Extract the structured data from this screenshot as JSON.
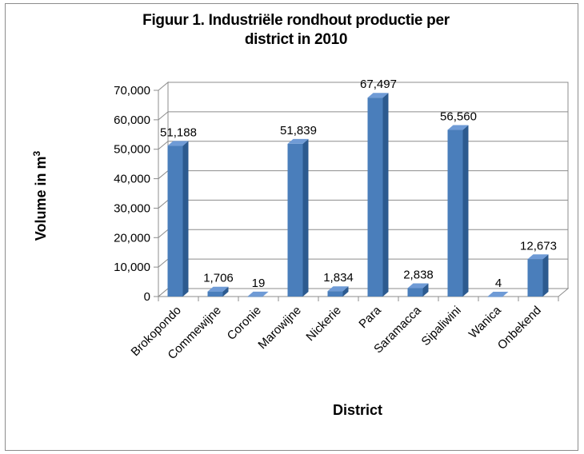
{
  "chart_data": {
    "type": "bar",
    "title_line1": "Figuur 1. Industriële rondhout productie per",
    "title_line2": "district in 2010",
    "xlabel": "District",
    "ylabel": "Volume in m",
    "ylabel_sup": "3",
    "ylim": [
      0,
      70000
    ],
    "yticks": [
      "0",
      "10,000",
      "20,000",
      "30,000",
      "40,000",
      "50,000",
      "60,000",
      "70,000"
    ],
    "ytick_values": [
      0,
      10000,
      20000,
      30000,
      40000,
      50000,
      60000,
      70000
    ],
    "grid": true,
    "legend": "none",
    "bar_color": "#4a7ebb",
    "categories": [
      "Brokopondo",
      "Commewijne",
      "Coronie",
      "Marowijne",
      "Nickerie",
      "Para",
      "Saramacca",
      "Sipaliwini",
      "Wanica",
      "Onbekend"
    ],
    "values": [
      51188,
      1706,
      19,
      51839,
      1834,
      67497,
      2838,
      56560,
      4,
      12673
    ],
    "data_labels": [
      "51,188",
      "1,706",
      "19",
      "51,839",
      "1,834",
      "67,497",
      "2,838",
      "56,560",
      "4",
      "12,673"
    ]
  }
}
